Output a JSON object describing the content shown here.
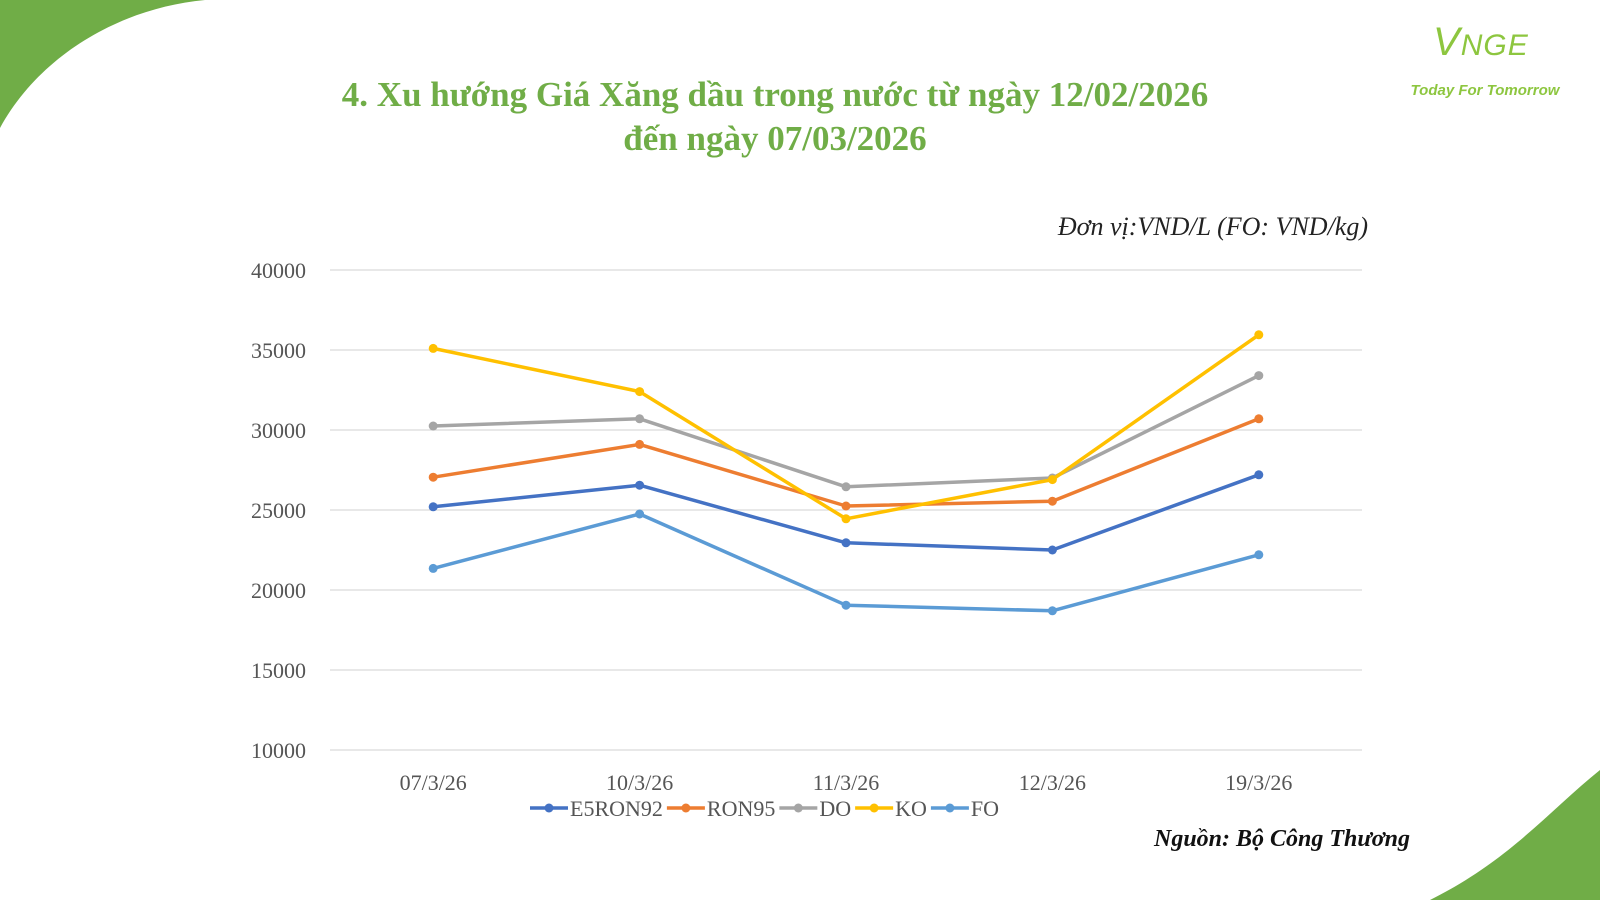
{
  "slide": {
    "title_line1": "4. Xu hướng Giá Xăng dầu trong nước từ ngày 12/02/2026",
    "title_line2": "đến ngày 07/03/2026",
    "unit_note": "Đơn vị:VND/L (FO: VND/kg)",
    "source": "Nguồn: Bộ Công Thương",
    "logo": {
      "mark": "NGE",
      "mark_letter": "V",
      "tagline": "Today For Tomorrow",
      "color": "#8dc63f"
    },
    "corner_color": "#70ad47"
  },
  "chart_data": {
    "type": "line",
    "title": "4. Xu hướng Giá Xăng dầu trong nước từ ngày 12/02/2026 đến ngày 07/03/2026",
    "xlabel": "",
    "ylabel": "",
    "categories": [
      "07/3/26",
      "10/3/26",
      "11/3/26",
      "12/3/26",
      "19/3/26"
    ],
    "ylim": [
      10000,
      40000
    ],
    "yticks": [
      10000,
      15000,
      20000,
      25000,
      30000,
      35000,
      40000
    ],
    "grid": true,
    "legend_position": "bottom",
    "series": [
      {
        "name": "E5RON92",
        "color": "#4472c4",
        "values": [
          25200,
          26550,
          22950,
          22500,
          27200
        ]
      },
      {
        "name": "RON95",
        "color": "#ed7d31",
        "values": [
          27050,
          29100,
          25250,
          25550,
          30700
        ]
      },
      {
        "name": "DO",
        "color": "#a5a5a5",
        "values": [
          30250,
          30700,
          26450,
          27000,
          33400
        ]
      },
      {
        "name": "KO",
        "color": "#ffc000",
        "values": [
          35100,
          32400,
          24450,
          26900,
          35950
        ]
      },
      {
        "name": "FO",
        "color": "#5b9bd5",
        "values": [
          21350,
          24750,
          19050,
          18700,
          22200
        ]
      }
    ]
  }
}
